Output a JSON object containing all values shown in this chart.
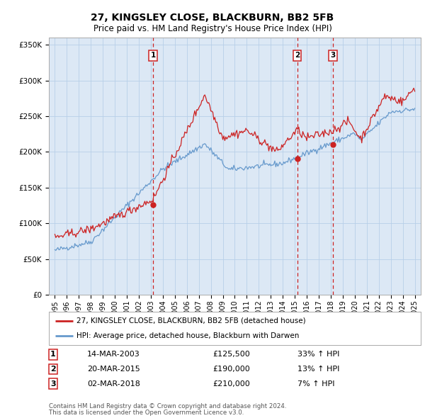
{
  "title": "27, KINGSLEY CLOSE, BLACKBURN, BB2 5FB",
  "subtitle": "Price paid vs. HM Land Registry's House Price Index (HPI)",
  "fig_bg_color": "#ffffff",
  "plot_bg_color": "#dce8f5",
  "grid_color": "#b8cfe8",
  "hpi_color": "#6699cc",
  "price_color": "#cc2222",
  "ylim": [
    0,
    360000
  ],
  "yticks": [
    0,
    50000,
    100000,
    150000,
    200000,
    250000,
    300000,
    350000
  ],
  "sales": [
    {
      "index": 1,
      "date": "14-MAR-2003",
      "price": 125500,
      "pct": "33%",
      "direction": "↑",
      "x_year": 2003.2
    },
    {
      "index": 2,
      "date": "20-MAR-2015",
      "price": 190000,
      "pct": "13%",
      "direction": "↑",
      "x_year": 2015.2
    },
    {
      "index": 3,
      "date": "02-MAR-2018",
      "price": 210000,
      "pct": "7%",
      "direction": "↑",
      "x_year": 2018.2
    }
  ],
  "legend_label_red": "27, KINGSLEY CLOSE, BLACKBURN, BB2 5FB (detached house)",
  "legend_label_blue": "HPI: Average price, detached house, Blackburn with Darwen",
  "footer_line1": "Contains HM Land Registry data © Crown copyright and database right 2024.",
  "footer_line2": "This data is licensed under the Open Government Licence v3.0.",
  "xlim": [
    1994.5,
    2025.5
  ],
  "xticks": [
    1995,
    1996,
    1997,
    1998,
    1999,
    2000,
    2001,
    2002,
    2003,
    2004,
    2005,
    2006,
    2007,
    2008,
    2009,
    2010,
    2011,
    2012,
    2013,
    2014,
    2015,
    2016,
    2017,
    2018,
    2019,
    2020,
    2021,
    2022,
    2023,
    2024,
    2025
  ]
}
